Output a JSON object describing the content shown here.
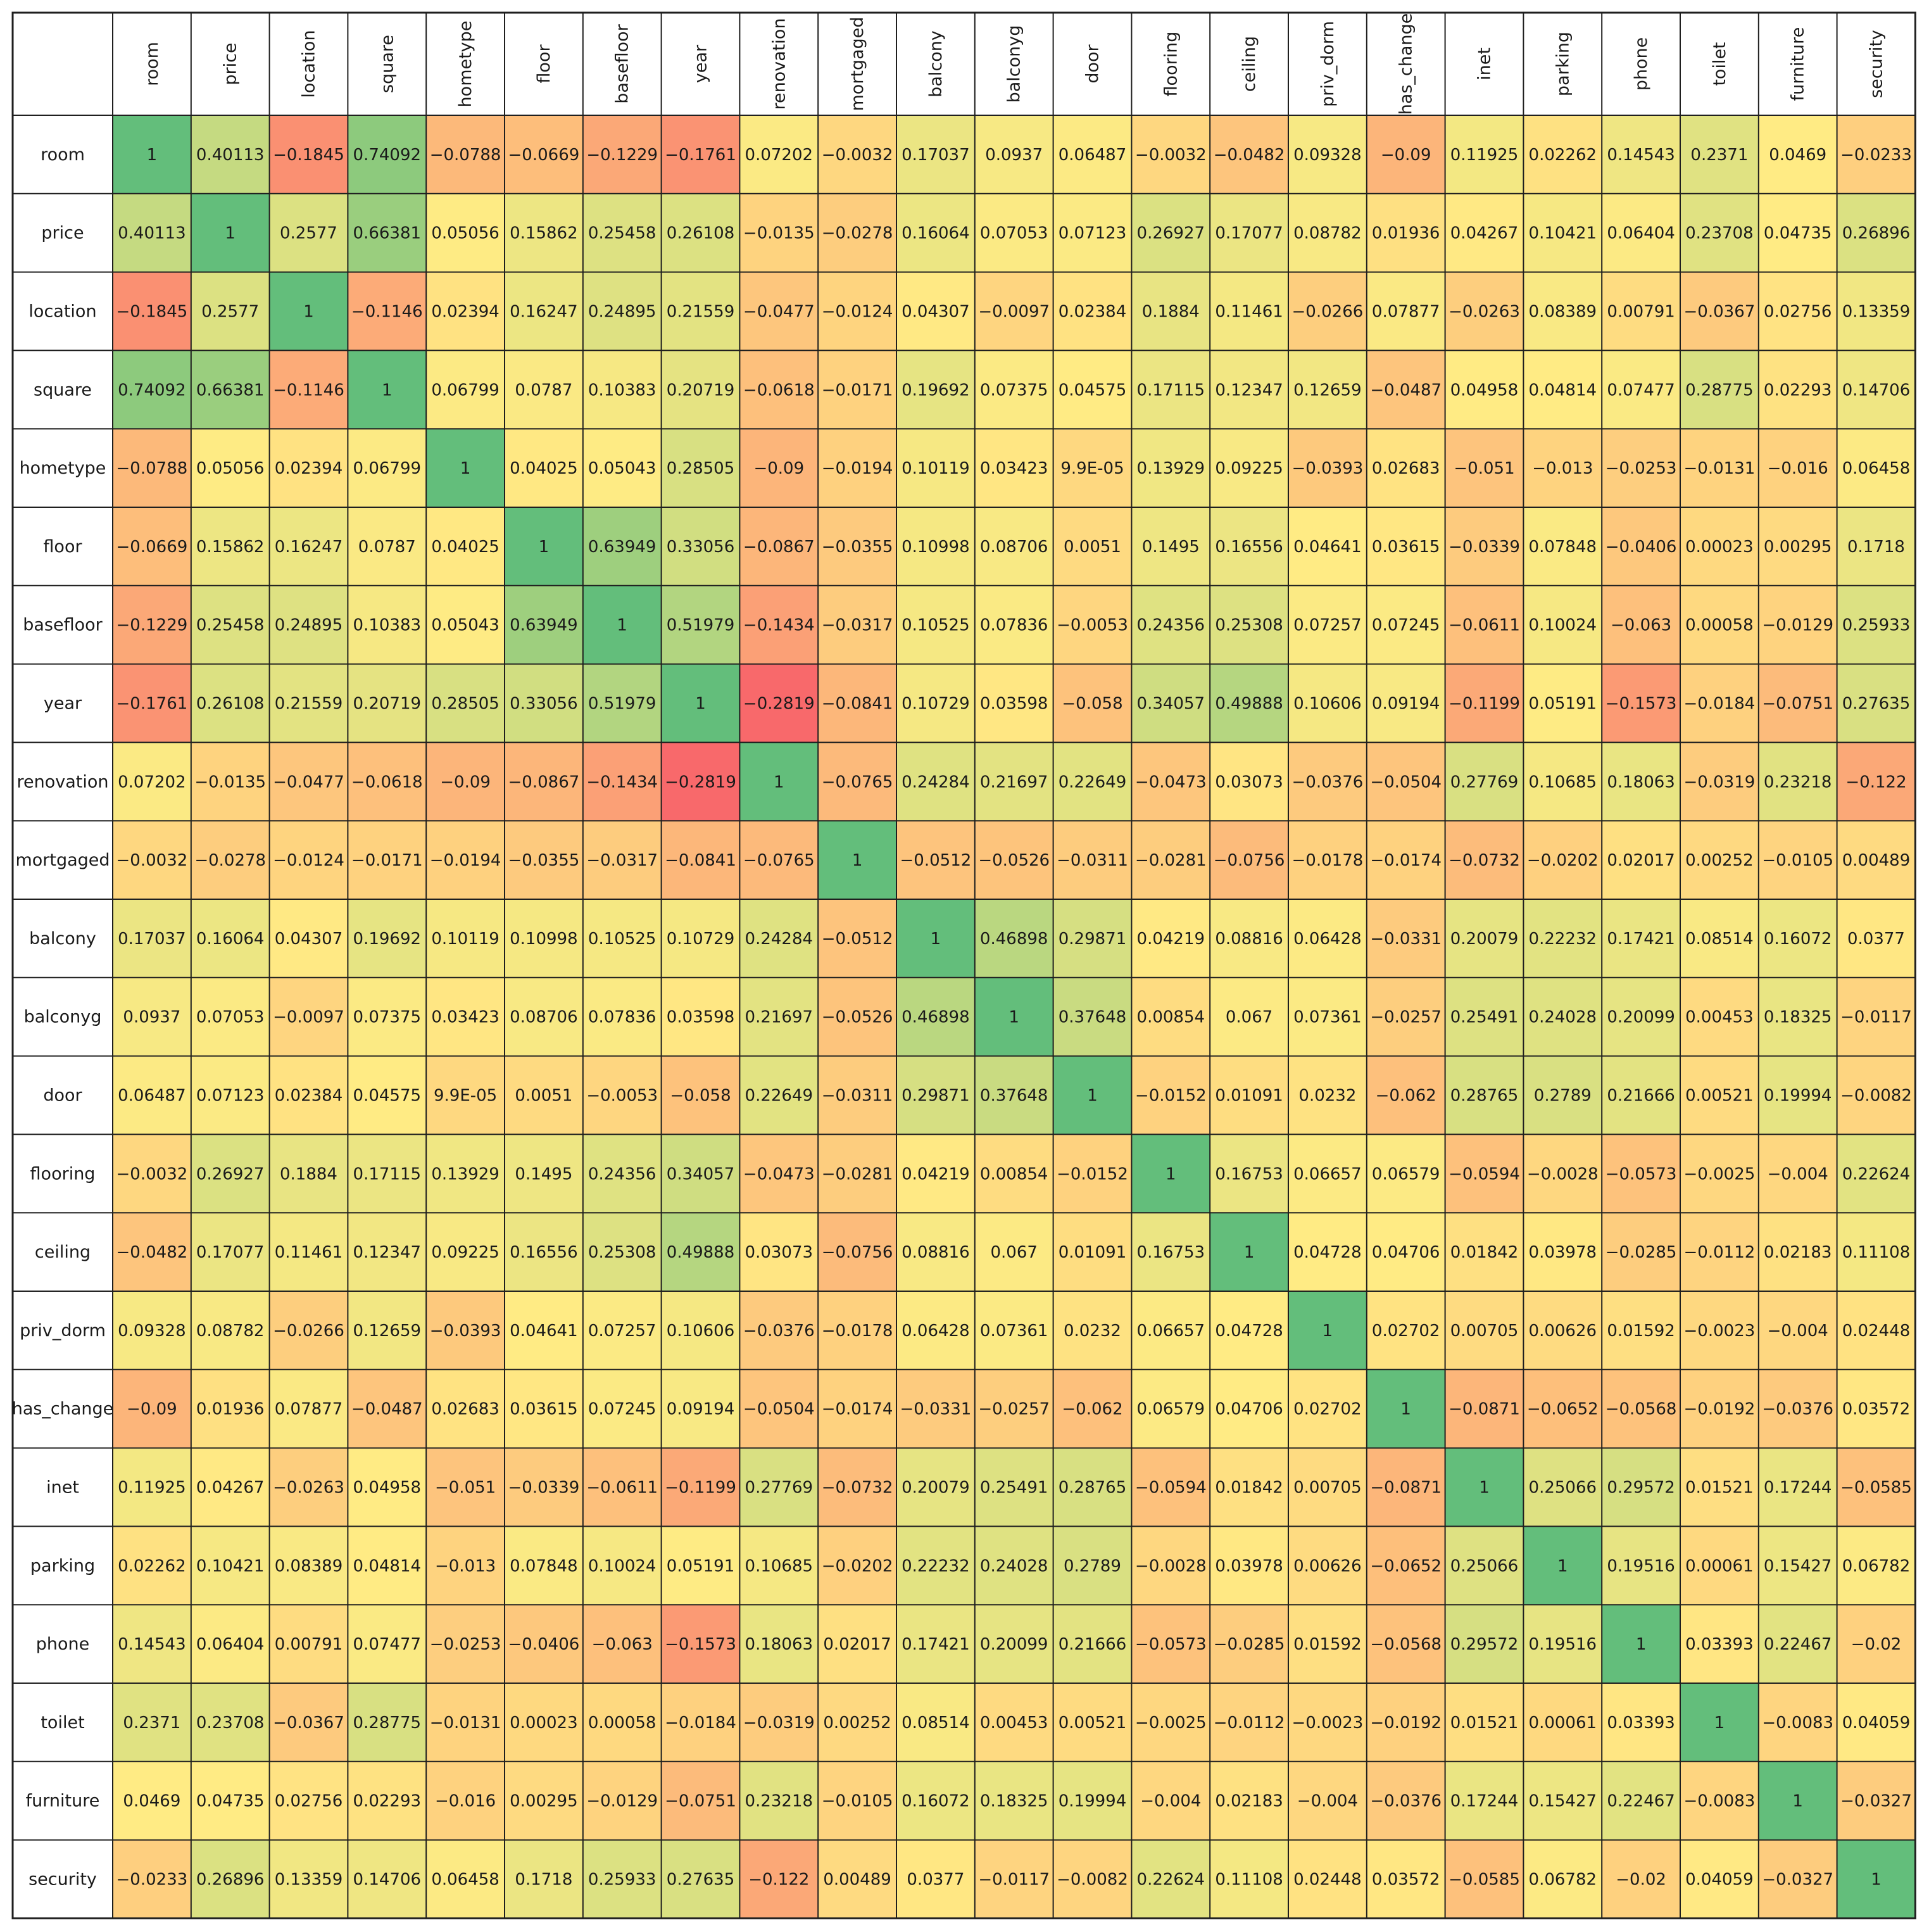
{
  "chart_data": {
    "type": "heatmap",
    "title": "",
    "color_scale": {
      "low": "#f8696b",
      "mid": "#ffeb84",
      "high": "#63be7b"
    },
    "columns": [
      "room",
      "price",
      "location",
      "square",
      "hometype",
      "floor",
      "basefloor",
      "year",
      "renovation",
      "mortgaged",
      "balcony",
      "balconyg",
      "door",
      "flooring",
      "ceiling",
      "priv_dorm",
      "has_change",
      "inet",
      "parking",
      "phone",
      "toilet",
      "furniture",
      "security"
    ],
    "rows": [
      "room",
      "price",
      "location",
      "square",
      "hometype",
      "floor",
      "basefloor",
      "year",
      "renovation",
      "mortgaged",
      "balcony",
      "balconyg",
      "door",
      "flooring",
      "ceiling",
      "priv_dorm",
      "has_change",
      "inet",
      "parking",
      "phone",
      "toilet",
      "furniture",
      "security"
    ],
    "values": [
      [
        "1",
        "0.40113",
        "−0.1845",
        "0.74092",
        "−0.0788",
        "−0.0669",
        "−0.1229",
        "−0.1761",
        "0.07202",
        "−0.0032",
        "0.17037",
        "0.0937",
        "0.06487",
        "−0.0032",
        "−0.0482",
        "0.09328",
        "−0.09",
        "0.11925",
        "0.02262",
        "0.14543",
        "0.2371",
        "0.0469",
        "−0.0233"
      ],
      [
        "0.40113",
        "1",
        "0.2577",
        "0.66381",
        "0.05056",
        "0.15862",
        "0.25458",
        "0.26108",
        "−0.0135",
        "−0.0278",
        "0.16064",
        "0.07053",
        "0.07123",
        "0.26927",
        "0.17077",
        "0.08782",
        "0.01936",
        "0.04267",
        "0.10421",
        "0.06404",
        "0.23708",
        "0.04735",
        "0.26896"
      ],
      [
        "−0.1845",
        "0.2577",
        "1",
        "−0.1146",
        "0.02394",
        "0.16247",
        "0.24895",
        "0.21559",
        "−0.0477",
        "−0.0124",
        "0.04307",
        "−0.0097",
        "0.02384",
        "0.1884",
        "0.11461",
        "−0.0266",
        "0.07877",
        "−0.0263",
        "0.08389",
        "0.00791",
        "−0.0367",
        "0.02756",
        "0.13359"
      ],
      [
        "0.74092",
        "0.66381",
        "−0.1146",
        "1",
        "0.06799",
        "0.0787",
        "0.10383",
        "0.20719",
        "−0.0618",
        "−0.0171",
        "0.19692",
        "0.07375",
        "0.04575",
        "0.17115",
        "0.12347",
        "0.12659",
        "−0.0487",
        "0.04958",
        "0.04814",
        "0.07477",
        "0.28775",
        "0.02293",
        "0.14706"
      ],
      [
        "−0.0788",
        "0.05056",
        "0.02394",
        "0.06799",
        "1",
        "0.04025",
        "0.05043",
        "0.28505",
        "−0.09",
        "−0.0194",
        "0.10119",
        "0.03423",
        "9.9E-05",
        "0.13929",
        "0.09225",
        "−0.0393",
        "0.02683",
        "−0.051",
        "−0.013",
        "−0.0253",
        "−0.0131",
        "−0.016",
        "0.06458"
      ],
      [
        "−0.0669",
        "0.15862",
        "0.16247",
        "0.0787",
        "0.04025",
        "1",
        "0.63949",
        "0.33056",
        "−0.0867",
        "−0.0355",
        "0.10998",
        "0.08706",
        "0.0051",
        "0.1495",
        "0.16556",
        "0.04641",
        "0.03615",
        "−0.0339",
        "0.07848",
        "−0.0406",
        "0.00023",
        "0.00295",
        "0.1718"
      ],
      [
        "−0.1229",
        "0.25458",
        "0.24895",
        "0.10383",
        "0.05043",
        "0.63949",
        "1",
        "0.51979",
        "−0.1434",
        "−0.0317",
        "0.10525",
        "0.07836",
        "−0.0053",
        "0.24356",
        "0.25308",
        "0.07257",
        "0.07245",
        "−0.0611",
        "0.10024",
        "−0.063",
        "0.00058",
        "−0.0129",
        "0.25933"
      ],
      [
        "−0.1761",
        "0.26108",
        "0.21559",
        "0.20719",
        "0.28505",
        "0.33056",
        "0.51979",
        "1",
        "−0.2819",
        "−0.0841",
        "0.10729",
        "0.03598",
        "−0.058",
        "0.34057",
        "0.49888",
        "0.10606",
        "0.09194",
        "−0.1199",
        "0.05191",
        "−0.1573",
        "−0.0184",
        "−0.0751",
        "0.27635"
      ],
      [
        "0.07202",
        "−0.0135",
        "−0.0477",
        "−0.0618",
        "−0.09",
        "−0.0867",
        "−0.1434",
        "−0.2819",
        "1",
        "−0.0765",
        "0.24284",
        "0.21697",
        "0.22649",
        "−0.0473",
        "0.03073",
        "−0.0376",
        "−0.0504",
        "0.27769",
        "0.10685",
        "0.18063",
        "−0.0319",
        "0.23218",
        "−0.122"
      ],
      [
        "−0.0032",
        "−0.0278",
        "−0.0124",
        "−0.0171",
        "−0.0194",
        "−0.0355",
        "−0.0317",
        "−0.0841",
        "−0.0765",
        "1",
        "−0.0512",
        "−0.0526",
        "−0.0311",
        "−0.0281",
        "−0.0756",
        "−0.0178",
        "−0.0174",
        "−0.0732",
        "−0.0202",
        "0.02017",
        "0.00252",
        "−0.0105",
        "0.00489"
      ],
      [
        "0.17037",
        "0.16064",
        "0.04307",
        "0.19692",
        "0.10119",
        "0.10998",
        "0.10525",
        "0.10729",
        "0.24284",
        "−0.0512",
        "1",
        "0.46898",
        "0.29871",
        "0.04219",
        "0.08816",
        "0.06428",
        "−0.0331",
        "0.20079",
        "0.22232",
        "0.17421",
        "0.08514",
        "0.16072",
        "0.0377"
      ],
      [
        "0.0937",
        "0.07053",
        "−0.0097",
        "0.07375",
        "0.03423",
        "0.08706",
        "0.07836",
        "0.03598",
        "0.21697",
        "−0.0526",
        "0.46898",
        "1",
        "0.37648",
        "0.00854",
        "0.067",
        "0.07361",
        "−0.0257",
        "0.25491",
        "0.24028",
        "0.20099",
        "0.00453",
        "0.18325",
        "−0.0117"
      ],
      [
        "0.06487",
        "0.07123",
        "0.02384",
        "0.04575",
        "9.9E-05",
        "0.0051",
        "−0.0053",
        "−0.058",
        "0.22649",
        "−0.0311",
        "0.29871",
        "0.37648",
        "1",
        "−0.0152",
        "0.01091",
        "0.0232",
        "−0.062",
        "0.28765",
        "0.2789",
        "0.21666",
        "0.00521",
        "0.19994",
        "−0.0082"
      ],
      [
        "−0.0032",
        "0.26927",
        "0.1884",
        "0.17115",
        "0.13929",
        "0.1495",
        "0.24356",
        "0.34057",
        "−0.0473",
        "−0.0281",
        "0.04219",
        "0.00854",
        "−0.0152",
        "1",
        "0.16753",
        "0.06657",
        "0.06579",
        "−0.0594",
        "−0.0028",
        "−0.0573",
        "−0.0025",
        "−0.004",
        "0.22624"
      ],
      [
        "−0.0482",
        "0.17077",
        "0.11461",
        "0.12347",
        "0.09225",
        "0.16556",
        "0.25308",
        "0.49888",
        "0.03073",
        "−0.0756",
        "0.08816",
        "0.067",
        "0.01091",
        "0.16753",
        "1",
        "0.04728",
        "0.04706",
        "0.01842",
        "0.03978",
        "−0.0285",
        "−0.0112",
        "0.02183",
        "0.11108"
      ],
      [
        "0.09328",
        "0.08782",
        "−0.0266",
        "0.12659",
        "−0.0393",
        "0.04641",
        "0.07257",
        "0.10606",
        "−0.0376",
        "−0.0178",
        "0.06428",
        "0.07361",
        "0.0232",
        "0.06657",
        "0.04728",
        "1",
        "0.02702",
        "0.00705",
        "0.00626",
        "0.01592",
        "−0.0023",
        "−0.004",
        "0.02448"
      ],
      [
        "−0.09",
        "0.01936",
        "0.07877",
        "−0.0487",
        "0.02683",
        "0.03615",
        "0.07245",
        "0.09194",
        "−0.0504",
        "−0.0174",
        "−0.0331",
        "−0.0257",
        "−0.062",
        "0.06579",
        "0.04706",
        "0.02702",
        "1",
        "−0.0871",
        "−0.0652",
        "−0.0568",
        "−0.0192",
        "−0.0376",
        "0.03572"
      ],
      [
        "0.11925",
        "0.04267",
        "−0.0263",
        "0.04958",
        "−0.051",
        "−0.0339",
        "−0.0611",
        "−0.1199",
        "0.27769",
        "−0.0732",
        "0.20079",
        "0.25491",
        "0.28765",
        "−0.0594",
        "0.01842",
        "0.00705",
        "−0.0871",
        "1",
        "0.25066",
        "0.29572",
        "0.01521",
        "0.17244",
        "−0.0585"
      ],
      [
        "0.02262",
        "0.10421",
        "0.08389",
        "0.04814",
        "−0.013",
        "0.07848",
        "0.10024",
        "0.05191",
        "0.10685",
        "−0.0202",
        "0.22232",
        "0.24028",
        "0.2789",
        "−0.0028",
        "0.03978",
        "0.00626",
        "−0.0652",
        "0.25066",
        "1",
        "0.19516",
        "0.00061",
        "0.15427",
        "0.06782"
      ],
      [
        "0.14543",
        "0.06404",
        "0.00791",
        "0.07477",
        "−0.0253",
        "−0.0406",
        "−0.063",
        "−0.1573",
        "0.18063",
        "0.02017",
        "0.17421",
        "0.20099",
        "0.21666",
        "−0.0573",
        "−0.0285",
        "0.01592",
        "−0.0568",
        "0.29572",
        "0.19516",
        "1",
        "0.03393",
        "0.22467",
        "−0.02"
      ],
      [
        "0.2371",
        "0.23708",
        "−0.0367",
        "0.28775",
        "−0.0131",
        "0.00023",
        "0.00058",
        "−0.0184",
        "−0.0319",
        "0.00252",
        "0.08514",
        "0.00453",
        "0.00521",
        "−0.0025",
        "−0.0112",
        "−0.0023",
        "−0.0192",
        "0.01521",
        "0.00061",
        "0.03393",
        "1",
        "−0.0083",
        "0.04059"
      ],
      [
        "0.0469",
        "0.04735",
        "0.02756",
        "0.02293",
        "−0.016",
        "0.00295",
        "−0.0129",
        "−0.0751",
        "0.23218",
        "−0.0105",
        "0.16072",
        "0.18325",
        "0.19994",
        "−0.004",
        "0.02183",
        "−0.004",
        "−0.0376",
        "0.17244",
        "0.15427",
        "0.22467",
        "−0.0083",
        "1",
        "−0.0327"
      ],
      [
        "−0.0233",
        "0.26896",
        "0.13359",
        "0.14706",
        "0.06458",
        "0.1718",
        "0.25933",
        "0.27635",
        "−0.122",
        "0.00489",
        "0.0377",
        "−0.0117",
        "−0.0082",
        "0.22624",
        "0.11108",
        "0.02448",
        "0.03572",
        "−0.0585",
        "0.06782",
        "−0.02",
        "0.04059",
        "−0.0327",
        "1"
      ]
    ]
  }
}
